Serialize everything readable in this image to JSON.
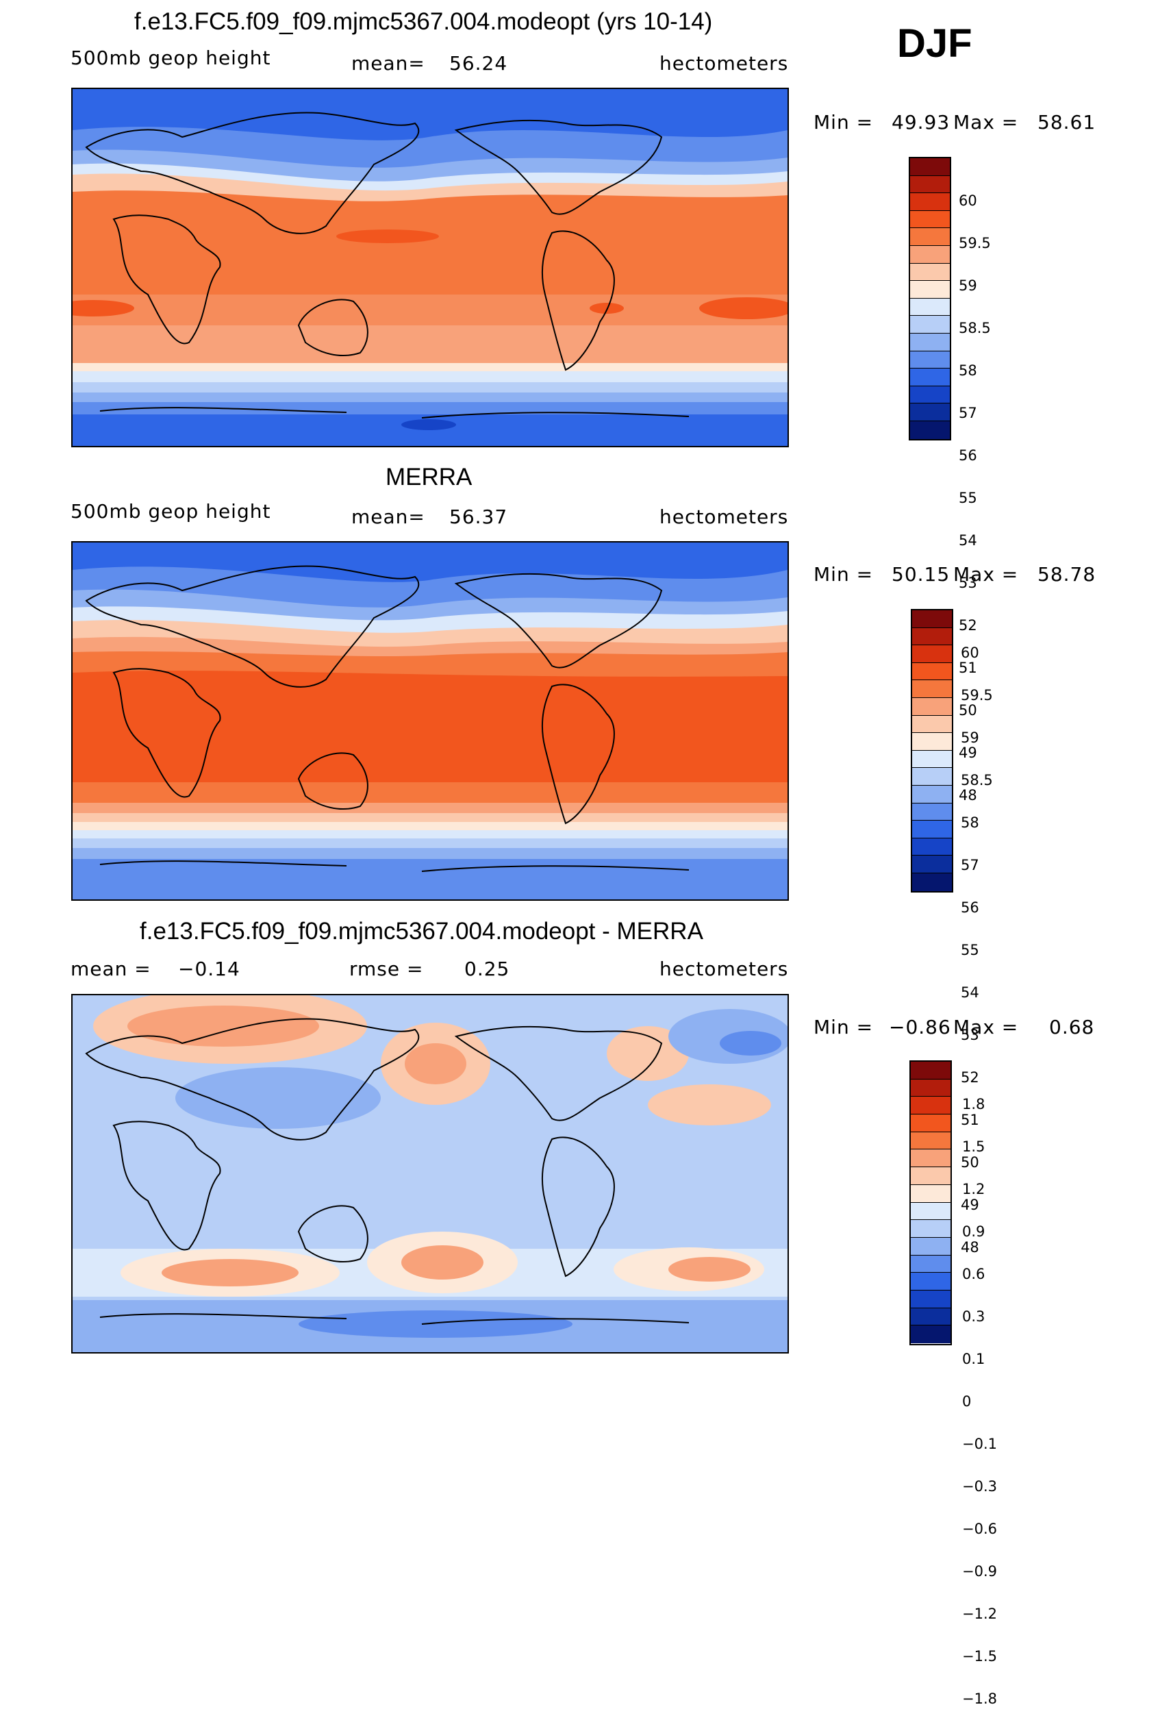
{
  "season": "DJF",
  "panels": [
    {
      "title": "f.e13.FC5.f09_f09.mjmc5367.004.modeopt (yrs 10-14)",
      "left_text": "500mb geop height",
      "mid_label": "mean=",
      "mid_value": "56.24",
      "units": "hectometers",
      "min_label": "Min =",
      "min_value": "49.93",
      "max_label": "Max =",
      "max_value": "58.61",
      "legend": [
        "60",
        "59.5",
        "59",
        "58.5",
        "58",
        "57",
        "56",
        "55",
        "54",
        "53",
        "52",
        "51",
        "50",
        "49",
        "48"
      ]
    },
    {
      "title": "MERRA",
      "left_text": "500mb geop height",
      "mid_label": "mean=",
      "mid_value": "56.37",
      "units": "hectometers",
      "min_label": "Min =",
      "min_value": "50.15",
      "max_label": "Max =",
      "max_value": "58.78",
      "legend": [
        "60",
        "59.5",
        "59",
        "58.5",
        "58",
        "57",
        "56",
        "55",
        "54",
        "53",
        "52",
        "51",
        "50",
        "49",
        "48"
      ]
    },
    {
      "title": "f.e13.FC5.f09_f09.mjmc5367.004.modeopt - MERRA",
      "left_label": "mean =",
      "left_value": "−0.14",
      "mid_label": "rmse =",
      "mid_value": "0.25",
      "units": "hectometers",
      "min_label": "Min =",
      "min_value": "−0.86",
      "max_label": "Max =",
      "max_value": "0.68",
      "legend": [
        "1.8",
        "1.5",
        "1.2",
        "0.9",
        "0.6",
        "0.3",
        "0.1",
        "0",
        "−0.1",
        "−0.3",
        "−0.6",
        "−0.9",
        "−1.2",
        "−1.5",
        "−1.8"
      ]
    }
  ],
  "colors": {
    "colorbar": [
      "#7d0a0a",
      "#b21d0c",
      "#d8320f",
      "#f2561e",
      "#f5773d",
      "#f8a27a",
      "#fbc9ac",
      "#fde9d9",
      "#dbe9fb",
      "#b7cff7",
      "#8eb1f2",
      "#5f8ded",
      "#2f66e6",
      "#1644c7",
      "#0b2e9d",
      "#05166e"
    ]
  }
}
